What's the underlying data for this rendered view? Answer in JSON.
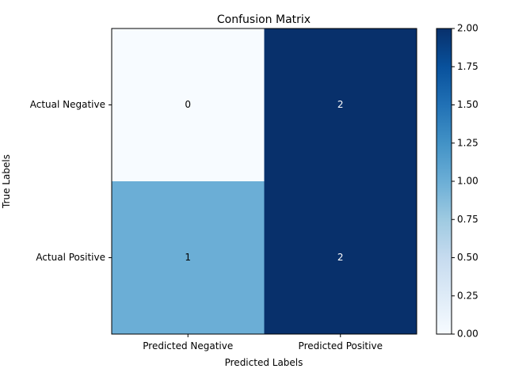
{
  "chart_data": {
    "type": "heatmap",
    "title": "Confusion Matrix",
    "xlabel": "Predicted Labels",
    "ylabel": "True Labels",
    "x_categories": [
      "Predicted Negative",
      "Predicted Positive"
    ],
    "y_categories": [
      "Actual Negative",
      "Actual Positive"
    ],
    "values": [
      [
        0,
        2
      ],
      [
        1,
        2
      ]
    ],
    "colormap": "Blues",
    "colorbar": {
      "vmin": 0,
      "vmax": 2,
      "ticks": [
        "0.00",
        "0.25",
        "0.50",
        "0.75",
        "1.00",
        "1.25",
        "1.50",
        "1.75",
        "2.00"
      ]
    },
    "grid": false
  }
}
